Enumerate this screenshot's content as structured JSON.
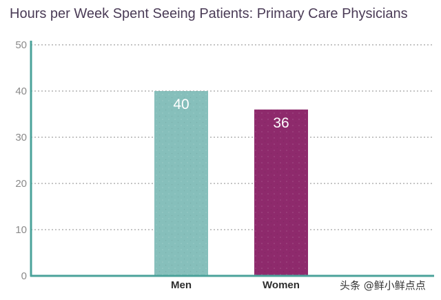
{
  "chart_data": {
    "type": "bar",
    "title": "Hours per Week Spent Seeing Patients: Primary Care Physicians",
    "categories": [
      "Men",
      "Women"
    ],
    "values": [
      40,
      36
    ],
    "data_labels": [
      "40",
      "36"
    ],
    "colors": [
      "#86bfbb",
      "#8e2a6c"
    ],
    "axis_color": "#4aa29a",
    "grid_color": "#8a8a8a",
    "xlabel": "",
    "ylabel": "",
    "ylim": [
      0,
      50
    ],
    "yticks": [
      0,
      10,
      20,
      30,
      40,
      50
    ],
    "grid": true,
    "grid_style": "dotted"
  },
  "watermark": "头条 @鲜小鲜点点"
}
